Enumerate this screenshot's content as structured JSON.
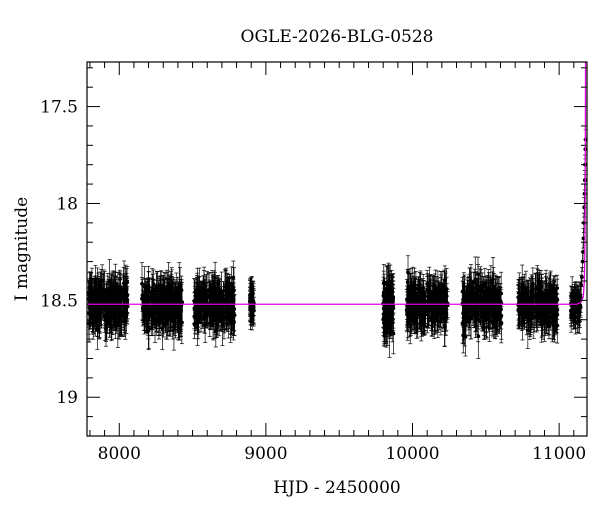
{
  "chart_data": {
    "type": "scatter",
    "title": "OGLE-2026-BLG-0528",
    "xlabel": "HJD - 2450000",
    "ylabel": "I magnitude",
    "xlim": [
      7780,
      11190
    ],
    "ylim": [
      19.2,
      17.27
    ],
    "y_inverted": true,
    "grid": false,
    "legend": "none",
    "x_ticks": [
      8000,
      9000,
      10000,
      11000
    ],
    "y_ticks": [
      17.5,
      18,
      18.5,
      19
    ],
    "x_tick_labels": [
      "8000",
      "9000",
      "10000",
      "11000"
    ],
    "y_tick_labels": [
      "17.5",
      "18",
      "18.5",
      "19"
    ],
    "observing_seasons": [
      {
        "x_start": 7790,
        "x_end": 8060,
        "mean_mag": 18.52,
        "scatter": 0.09,
        "error": 0.09,
        "points": 260
      },
      {
        "x_start": 8150,
        "x_end": 8430,
        "mean_mag": 18.52,
        "scatter": 0.09,
        "error": 0.09,
        "points": 260
      },
      {
        "x_start": 8510,
        "x_end": 8790,
        "mean_mag": 18.52,
        "scatter": 0.09,
        "error": 0.09,
        "points": 260
      },
      {
        "x_start": 8890,
        "x_end": 8920,
        "mean_mag": 18.52,
        "scatter": 0.07,
        "error": 0.08,
        "points": 40
      },
      {
        "x_start": 9800,
        "x_end": 9870,
        "mean_mag": 18.54,
        "scatter": 0.1,
        "error": 0.1,
        "points": 90
      },
      {
        "x_start": 9960,
        "x_end": 10240,
        "mean_mag": 18.52,
        "scatter": 0.09,
        "error": 0.09,
        "points": 240
      },
      {
        "x_start": 10340,
        "x_end": 10610,
        "mean_mag": 18.52,
        "scatter": 0.09,
        "error": 0.09,
        "points": 240
      },
      {
        "x_start": 10720,
        "x_end": 10990,
        "mean_mag": 18.52,
        "scatter": 0.09,
        "error": 0.09,
        "points": 240
      },
      {
        "x_start": 11080,
        "x_end": 11150,
        "mean_mag": 18.53,
        "scatter": 0.06,
        "error": 0.07,
        "points": 60
      }
    ],
    "rise_points": [
      {
        "x": 11150,
        "y": 18.42,
        "err": 0.05
      },
      {
        "x": 11155,
        "y": 18.38,
        "err": 0.05
      },
      {
        "x": 11160,
        "y": 18.3,
        "err": 0.05
      },
      {
        "x": 11163,
        "y": 18.25,
        "err": 0.05
      },
      {
        "x": 11166,
        "y": 18.18,
        "err": 0.05
      },
      {
        "x": 11169,
        "y": 18.1,
        "err": 0.05
      },
      {
        "x": 11171,
        "y": 18.02,
        "err": 0.05
      },
      {
        "x": 11173,
        "y": 17.95,
        "err": 0.05
      },
      {
        "x": 11175,
        "y": 17.88,
        "err": 0.05
      },
      {
        "x": 11177,
        "y": 17.8,
        "err": 0.05
      },
      {
        "x": 11179,
        "y": 17.72,
        "err": 0.05
      },
      {
        "x": 11181,
        "y": 17.67,
        "err": 0.05
      }
    ],
    "model": {
      "name": "",
      "color": "#e100e1",
      "baseline_mag": 18.52,
      "points": [
        {
          "x": 7780,
          "y": 18.52
        },
        {
          "x": 11120,
          "y": 18.52
        },
        {
          "x": 11150,
          "y": 18.51
        },
        {
          "x": 11165,
          "y": 18.48
        },
        {
          "x": 11172,
          "y": 18.4
        },
        {
          "x": 11176,
          "y": 18.2
        },
        {
          "x": 11178,
          "y": 17.9
        },
        {
          "x": 11179,
          "y": 17.6
        },
        {
          "x": 11180,
          "y": 17.27
        }
      ]
    },
    "data_color": "#000000"
  }
}
